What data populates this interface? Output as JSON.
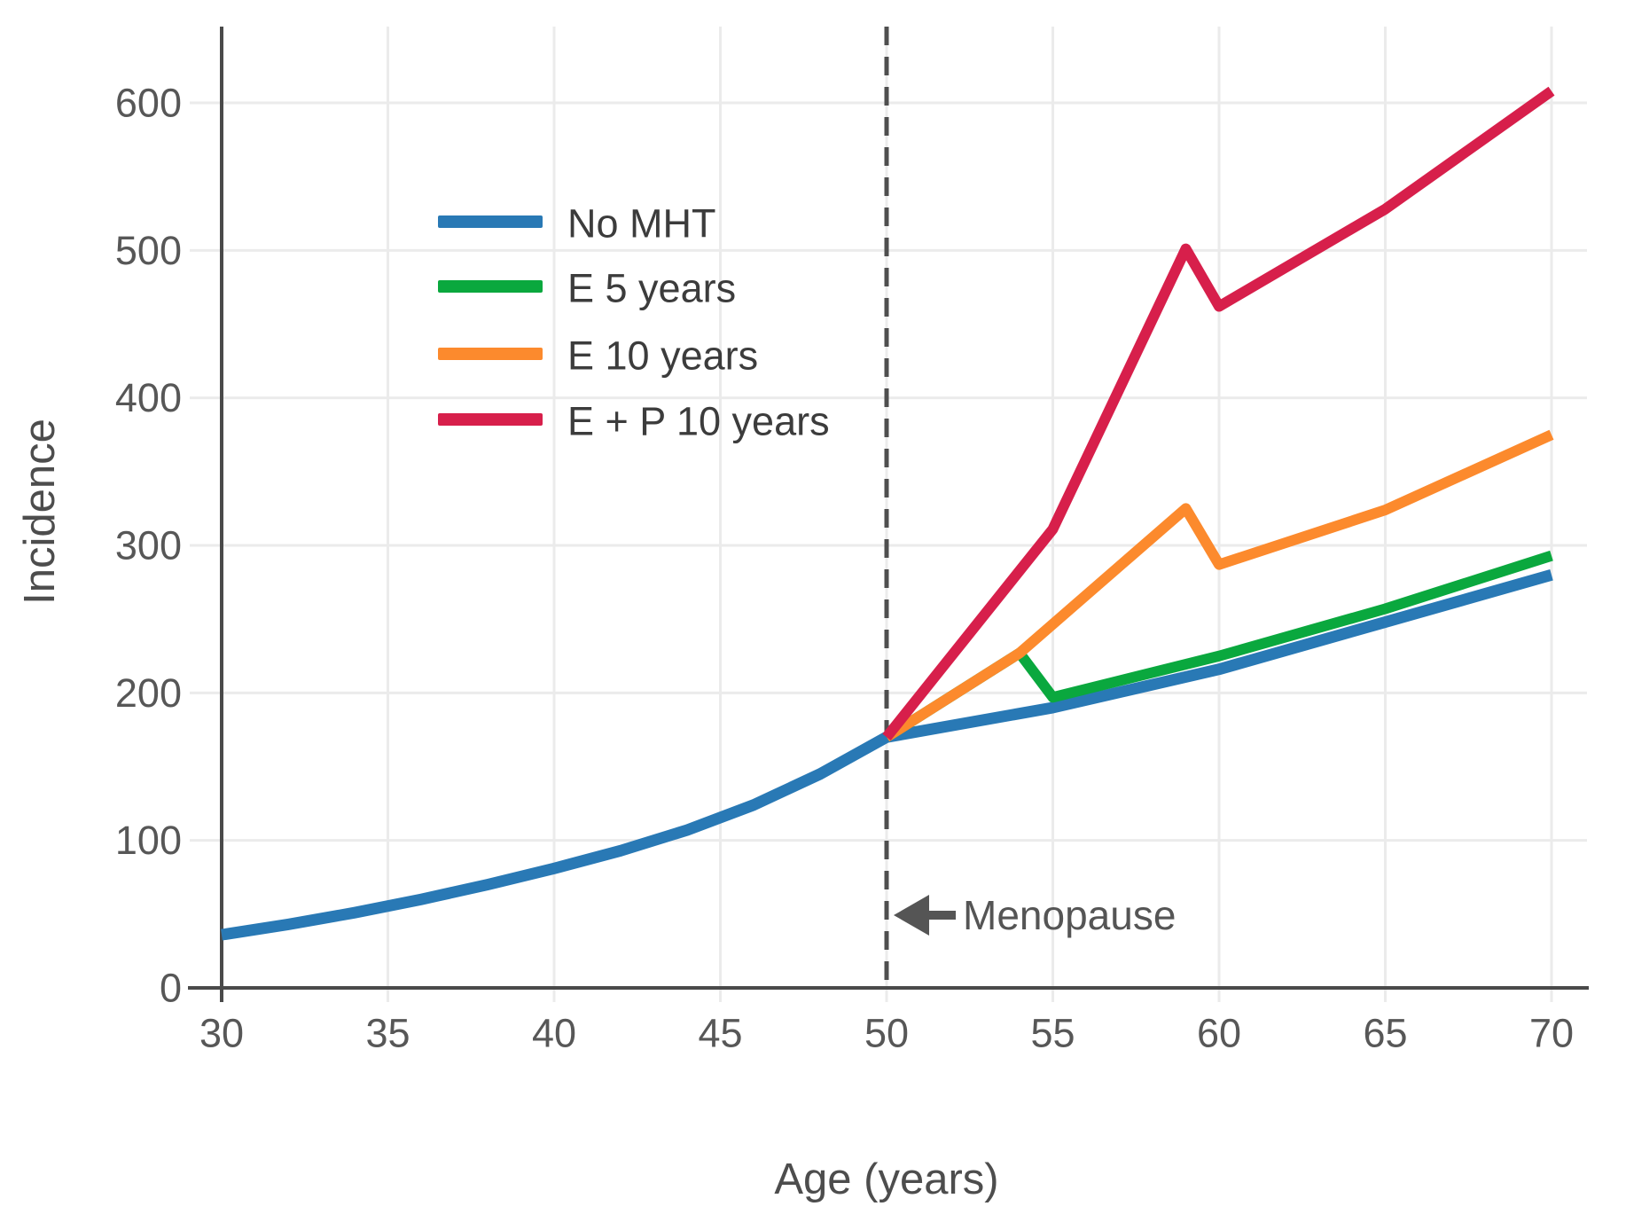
{
  "chart_data": {
    "type": "line",
    "title": "",
    "xlabel": "Age (years)",
    "ylabel": "Incidence",
    "x_ticks": [
      30,
      35,
      40,
      45,
      50,
      55,
      60,
      65,
      70
    ],
    "y_ticks": [
      0,
      100,
      200,
      300,
      400,
      500,
      600
    ],
    "xlim": [
      30,
      70
    ],
    "ylim": [
      0,
      650
    ],
    "grid": true,
    "legend_position": "upper-left-inside",
    "series": [
      {
        "name": "No MHT",
        "color": "#2979b5",
        "points": [
          [
            30,
            36
          ],
          [
            32,
            43
          ],
          [
            34,
            51
          ],
          [
            36,
            60
          ],
          [
            38,
            70
          ],
          [
            40,
            81
          ],
          [
            42,
            93
          ],
          [
            44,
            107
          ],
          [
            46,
            124
          ],
          [
            48,
            145
          ],
          [
            50,
            170
          ],
          [
            55,
            190
          ],
          [
            60,
            216
          ],
          [
            65,
            248
          ],
          [
            70,
            280
          ]
        ]
      },
      {
        "name": "E 5 years",
        "color": "#0aa83e",
        "points": [
          [
            50,
            170
          ],
          [
            54,
            227
          ],
          [
            55,
            197
          ],
          [
            60,
            225
          ],
          [
            65,
            257
          ],
          [
            70,
            293
          ]
        ]
      },
      {
        "name": "E 10 years",
        "color": "#fc8a2d",
        "points": [
          [
            50,
            170
          ],
          [
            54,
            227
          ],
          [
            59,
            325
          ],
          [
            60,
            287
          ],
          [
            65,
            324
          ],
          [
            70,
            375
          ]
        ]
      },
      {
        "name": "E + P 10 years",
        "color": "#d71f4b",
        "points": [
          [
            50,
            170
          ],
          [
            55,
            311
          ],
          [
            59,
            501
          ],
          [
            60,
            462
          ],
          [
            65,
            528
          ],
          [
            70,
            608
          ]
        ]
      }
    ],
    "reference_line": {
      "x": 50,
      "style": "dashed",
      "color": "#4f4f4f"
    },
    "annotations": [
      {
        "text": "Menopause",
        "arrow": "left",
        "x": 50,
        "y": 49
      }
    ],
    "colors": {
      "grid": "#ebebeb",
      "spine": "#4a4a4a",
      "tick_text": "#575757"
    }
  }
}
